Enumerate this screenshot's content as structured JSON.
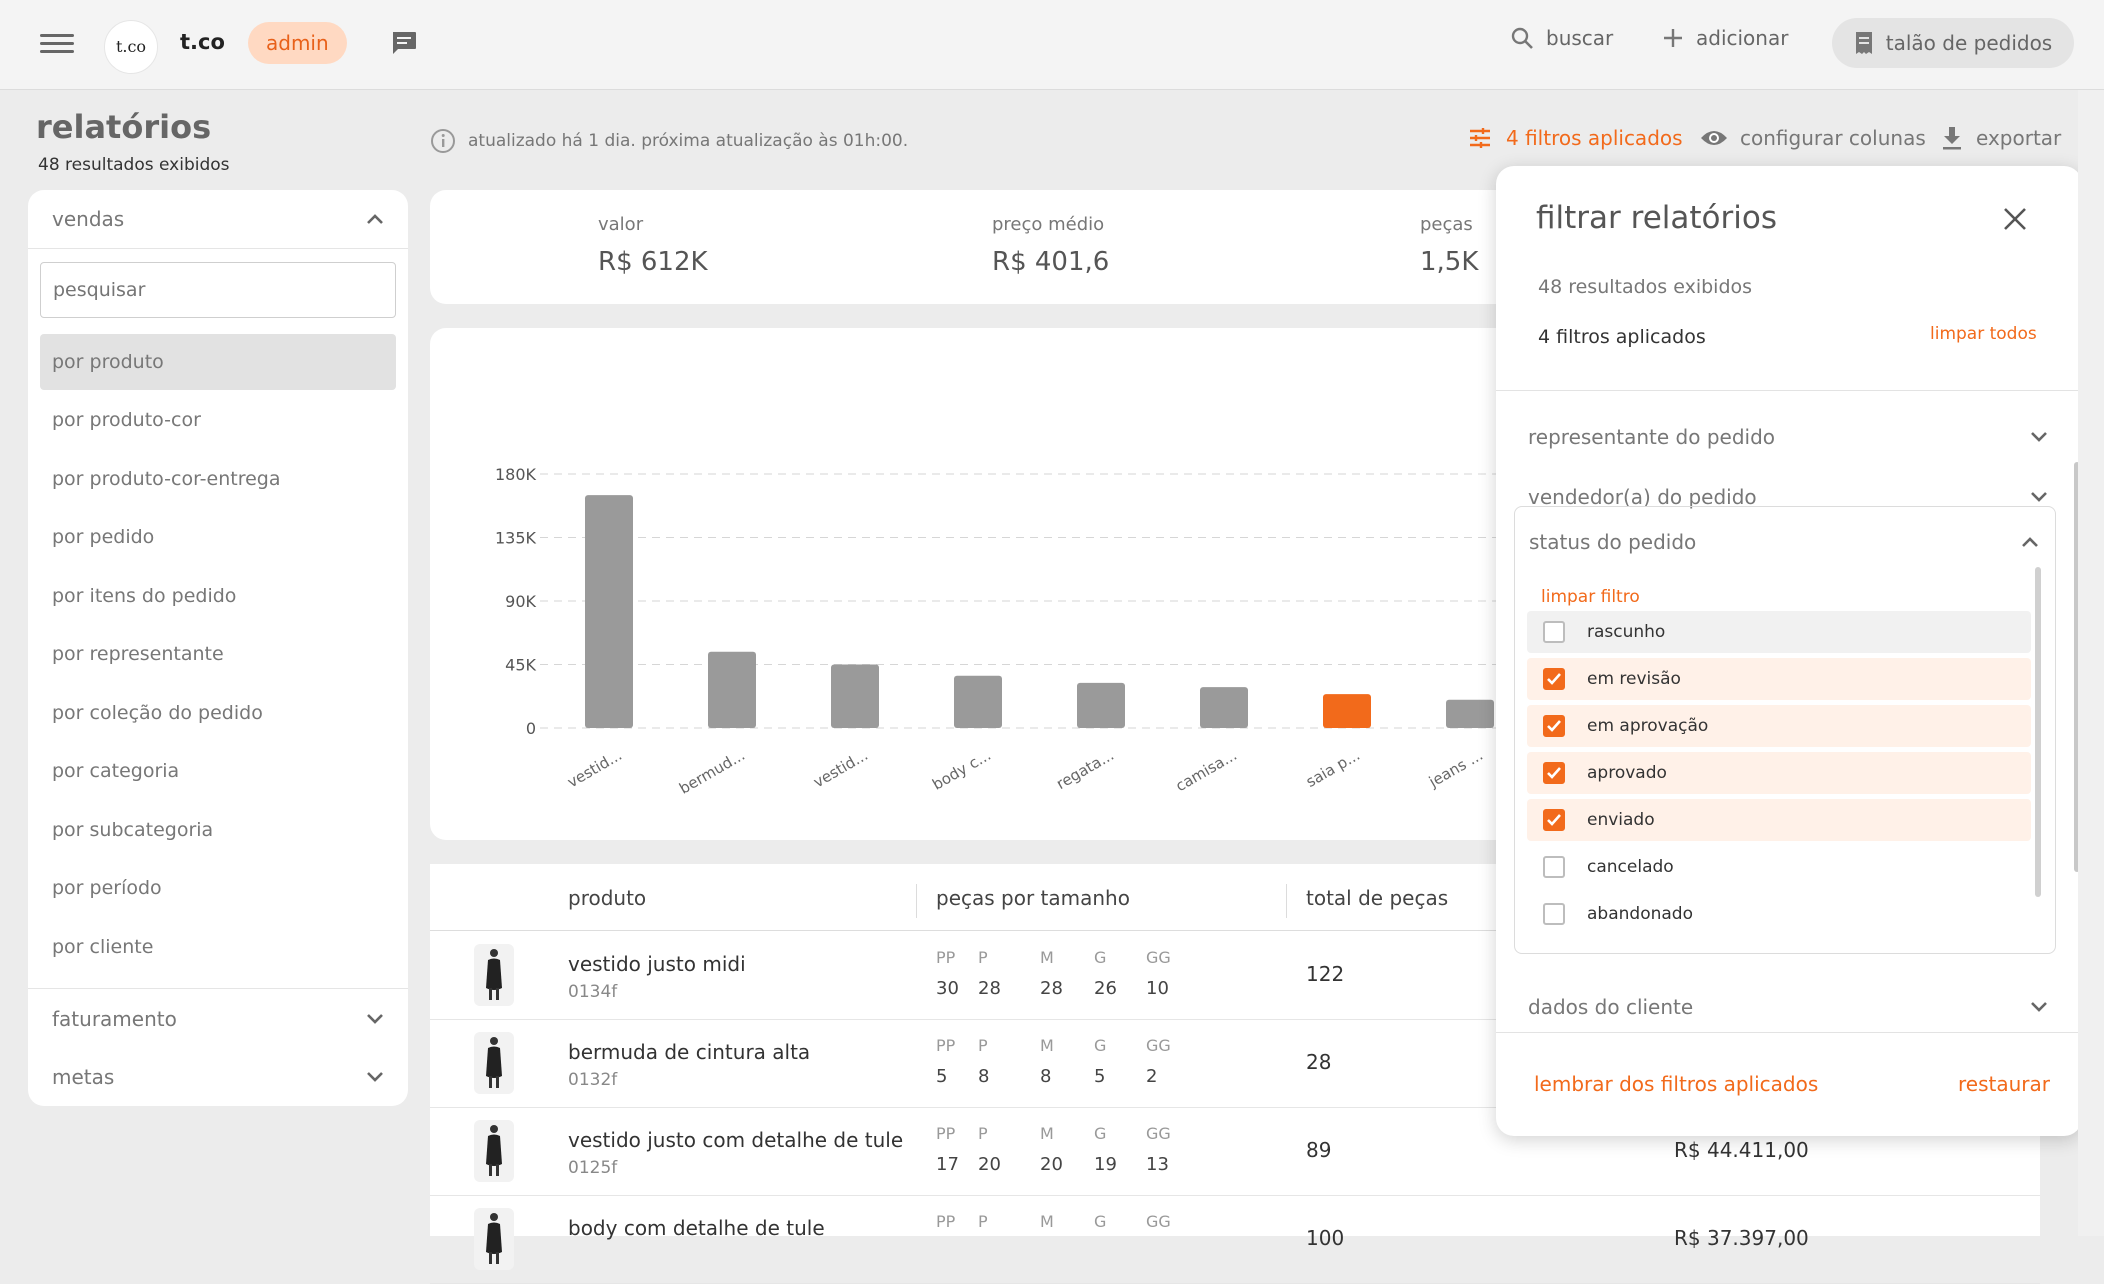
{
  "header": {
    "logo_text": "t.co",
    "brand": "t.co",
    "role": "admin",
    "search_label": "buscar",
    "add_label": "adicionar",
    "talao_label": "talão de pedidos"
  },
  "page": {
    "title": "relatórios",
    "subtitle": "48 resultados exibidos",
    "update_info": "atualizado há 1 dia. próxima atualização às 01h:00.",
    "filters_link": "4 filtros aplicados",
    "config_columns": "configurar colunas",
    "export": "exportar"
  },
  "sidebar": {
    "section_vendas": "vendas",
    "search_placeholder": "pesquisar",
    "items": [
      "por produto",
      "por produto-cor",
      "por produto-cor-entrega",
      "por pedido",
      "por itens do pedido",
      "por representante",
      "por coleção do pedido",
      "por categoria",
      "por subcategoria",
      "por período",
      "por cliente"
    ],
    "section_faturamento": "faturamento",
    "section_metas": "metas"
  },
  "summary": {
    "kpis": [
      {
        "label": "valor",
        "value": "R$ 612K"
      },
      {
        "label": "preço médio",
        "value": "R$ 401,6"
      },
      {
        "label": "peças",
        "value": "1,5K"
      }
    ]
  },
  "chart_data": {
    "type": "bar",
    "categories": [
      "vestid...",
      "bermud...",
      "vestid...",
      "body c...",
      "regata...",
      "camisa...",
      "saia p...",
      "jeans ..."
    ],
    "values": [
      165000,
      54000,
      45000,
      37000,
      32000,
      29000,
      24000,
      20000
    ],
    "highlight_index": 6,
    "yticks": [
      "0",
      "45K",
      "90K",
      "135K",
      "180K"
    ],
    "ylim": [
      0,
      180000
    ],
    "bar_color": "#9a9a9a",
    "highlight_color": "#f26a1b",
    "grid": true
  },
  "table": {
    "headers": {
      "produto": "produto",
      "sizes": "peças por tamanho",
      "total": "total de peças"
    },
    "size_labels": [
      "PP",
      "P",
      "M",
      "G",
      "GG"
    ],
    "rows": [
      {
        "name": "vestido justo midi",
        "code": "0134f",
        "sizes": [
          "30",
          "28",
          "28",
          "26",
          "10"
        ],
        "total": "122",
        "money": ""
      },
      {
        "name": "bermuda de cintura alta",
        "code": "0132f",
        "sizes": [
          "5",
          "8",
          "8",
          "5",
          "2"
        ],
        "total": "28",
        "money": ""
      },
      {
        "name": "vestido justo com detalhe de tule",
        "code": "0125f",
        "sizes": [
          "17",
          "20",
          "20",
          "19",
          "13"
        ],
        "total": "89",
        "money": "R$ 44.411,00"
      },
      {
        "name": "body com detalhe de tule",
        "code": "",
        "sizes": [
          "",
          "",
          "",
          "",
          ""
        ],
        "total": "100",
        "money": "R$ 37.397,00"
      }
    ]
  },
  "filter_panel": {
    "title": "filtrar relatórios",
    "results": "48 resultados exibidos",
    "count": "4 filtros aplicados",
    "clear_all": "limpar todos",
    "accordions": {
      "representante": "representante do pedido",
      "vendedor": "vendedor(a) do pedido",
      "status": "status do pedido",
      "cliente": "dados do cliente"
    },
    "clear_filter": "limpar filtro",
    "status_options": [
      {
        "label": "rascunho",
        "checked": false
      },
      {
        "label": "em revisão",
        "checked": true
      },
      {
        "label": "em aprovação",
        "checked": true
      },
      {
        "label": "aprovado",
        "checked": true
      },
      {
        "label": "enviado",
        "checked": true
      },
      {
        "label": "cancelado",
        "checked": false
      },
      {
        "label": "abandonado",
        "checked": false
      }
    ],
    "remember": "lembrar dos filtros aplicados",
    "restore": "restaurar"
  },
  "colors": {
    "accent": "#f26a1b",
    "accent_light": "#ffd9c2"
  }
}
